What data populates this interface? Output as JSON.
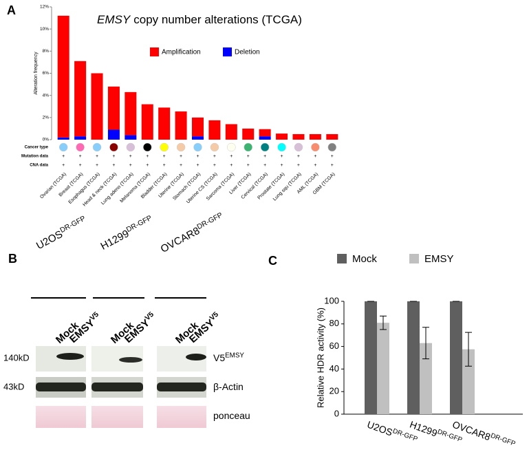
{
  "panels": [
    "A",
    "B",
    "C"
  ],
  "chart_data": [
    {
      "type": "stacked_bar",
      "title_gene": "EMSY",
      "title": "copy number alterations (TCGA)",
      "y_label": "Alteration frequency",
      "categories": [
        "Ovarian (TCGA)",
        "Breast (TCGA)",
        "Esophagus (TCGA)",
        "Head & neck (TCGA)",
        "Lung adeno (TCGA)",
        "Melanoma (TCGA)",
        "Bladder (TCGA)",
        "Uterine (TCGA)",
        "Stomach (TCGA)",
        "Uterine CS (TCGA)",
        "Sarcoma (TCGA)",
        "Liver (TCGA)",
        "Cervical (TCGA)",
        "Prostate (TCGA)",
        "Lung squ (TCGA)",
        "AML (TCGA)",
        "GBM (TCGA)"
      ],
      "series": [
        {
          "name": "Amplification",
          "color": "#ff0000",
          "values": [
            11.0,
            6.8,
            6.0,
            3.9,
            3.9,
            3.2,
            2.9,
            2.55,
            1.7,
            1.75,
            1.4,
            1.0,
            0.65,
            0.55,
            0.5,
            0.5,
            0.5
          ]
        },
        {
          "name": "Deletion",
          "color": "#0000ff",
          "values": [
            0.2,
            0.3,
            0,
            0.9,
            0.4,
            0,
            0,
            0,
            0.3,
            0,
            0,
            0,
            0.3,
            0,
            0,
            0,
            0
          ]
        }
      ],
      "ylim": [
        0,
        12
      ],
      "yticks": [
        {
          "value": 0,
          "label": "0%"
        },
        {
          "value": 2,
          "label": "2%"
        },
        {
          "value": 4,
          "label": "4%"
        },
        {
          "value": 6,
          "label": "6%"
        },
        {
          "value": 8,
          "label": "8%"
        },
        {
          "value": 10,
          "label": "10%"
        },
        {
          "value": 12,
          "label": "12%"
        }
      ],
      "row_labels": [
        "Cancer type",
        "Mutation data",
        "CNA data"
      ],
      "cancer_type_colors": [
        "#87cefa",
        "#ff69b4",
        "#87cefa",
        "#8b0000",
        "#d8bfd8",
        "#000000",
        "#ffff00",
        "#f5cba7",
        "#87cefa",
        "#f5cba7",
        "#fffff0",
        "#3cb371",
        "#008080",
        "#00ffff",
        "#d8bfd8",
        "#fa8c6e",
        "#808080"
      ],
      "row_mark": "+"
    },
    {
      "type": "bar",
      "y_label": "Relative HDR activity (%)",
      "categories": [
        "U2OS",
        "H1299",
        "OVCAR8"
      ],
      "category_superscripts": [
        "DR-GFP",
        "DR-GFP",
        "DR-GFP"
      ],
      "series": [
        {
          "name": "Mock",
          "color": "#5f5f5f",
          "values": [
            100,
            100,
            100
          ],
          "errors": [
            0,
            0,
            0
          ]
        },
        {
          "name": "EMSY",
          "color": "#c0c0c0",
          "values": [
            81,
            63,
            57.5
          ],
          "errors": [
            6,
            14,
            15
          ]
        }
      ],
      "ylim": [
        0,
        100
      ],
      "yticks": [
        0,
        20,
        40,
        60,
        80,
        100
      ]
    }
  ],
  "blot": {
    "cell_lines": [
      {
        "name": "U2OS",
        "superscript": "DR-GFP"
      },
      {
        "name": "H1299",
        "superscript": "DR-GFP"
      },
      {
        "name": "OVCAR8",
        "superscript": "DR-GFP"
      }
    ],
    "lanes": [
      {
        "name": "Mock"
      },
      {
        "name": "EMSY",
        "superscript": "V5"
      }
    ],
    "rows": [
      {
        "size": "140kD",
        "label": "V5",
        "label_superscript": "EMSY"
      },
      {
        "size": "43kD",
        "label": "β-Actin"
      },
      {
        "label": "ponceau"
      }
    ]
  }
}
